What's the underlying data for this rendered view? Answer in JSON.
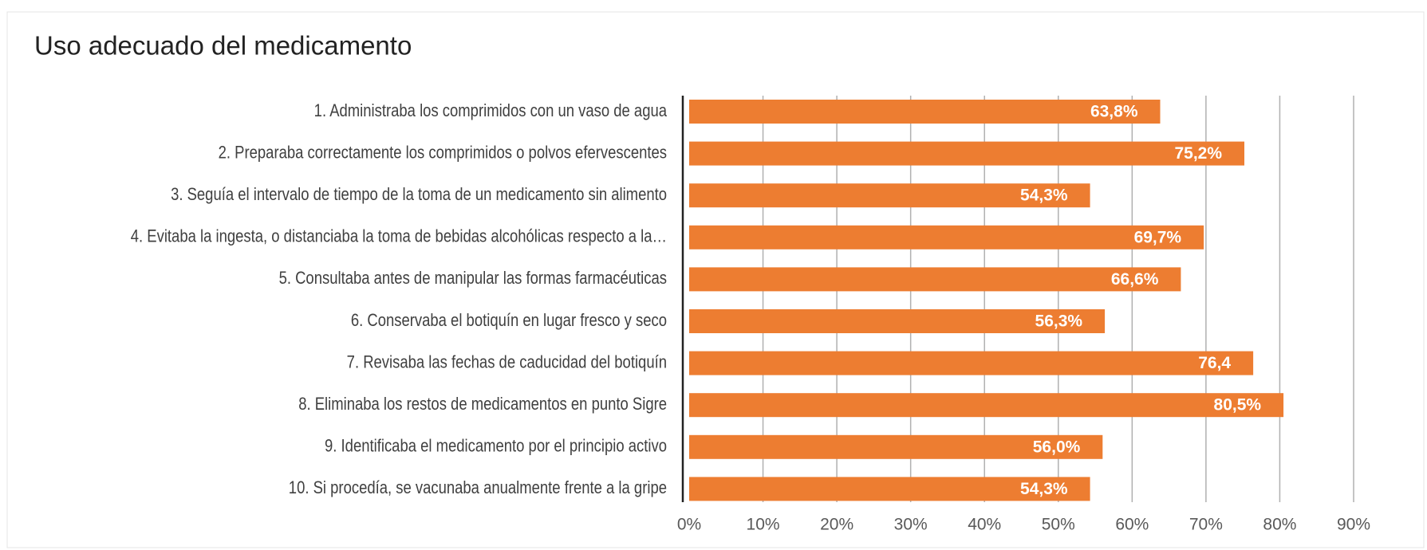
{
  "chart_data": {
    "type": "bar",
    "orientation": "horizontal",
    "title": "Uso adecuado del medicamento",
    "categories": [
      "1. Administraba los comprimidos con un vaso de agua",
      "2. Preparaba correctamente los comprimidos o polvos efervescentes",
      "3. Seguía el intervalo de tiempo de la toma de un medicamento sin alimento",
      "4. Evitaba la ingesta, o distanciaba la toma de bebidas alcohólicas respecto a la…",
      "5. Consultaba antes de manipular las formas farmacéuticas",
      "6. Conservaba el botiquín en lugar fresco y seco",
      "7. Revisaba las fechas de caducidad del botiquín",
      "8. Eliminaba los restos de medicamentos en punto Sigre",
      "9. Identificaba el medicamento por el principio activo",
      "10. Si procedía, se vacunaba anualmente frente a la gripe"
    ],
    "values": [
      63.8,
      75.2,
      54.3,
      69.7,
      66.6,
      56.3,
      76.4,
      80.5,
      56.0,
      54.3
    ],
    "value_labels": [
      "63,8%",
      "75,2%",
      "54,3%",
      "69,7%",
      "66,6%",
      "56,3%",
      "76,4",
      "80,5%",
      "56,0%",
      "54,3%"
    ],
    "color": "#ed7d31",
    "xlim": [
      0,
      90
    ],
    "xticks": [
      {
        "value": 0,
        "label": "0%"
      },
      {
        "value": 10,
        "label": "10%"
      },
      {
        "value": 20,
        "label": "20%"
      },
      {
        "value": 30,
        "label": "30%"
      },
      {
        "value": 40,
        "label": "40%"
      },
      {
        "value": 50,
        "label": "50%"
      },
      {
        "value": 60,
        "label": "60%"
      },
      {
        "value": 70,
        "label": "70%"
      },
      {
        "value": 80,
        "label": "80%"
      },
      {
        "value": 90,
        "label": "90%"
      }
    ],
    "grid": true
  }
}
